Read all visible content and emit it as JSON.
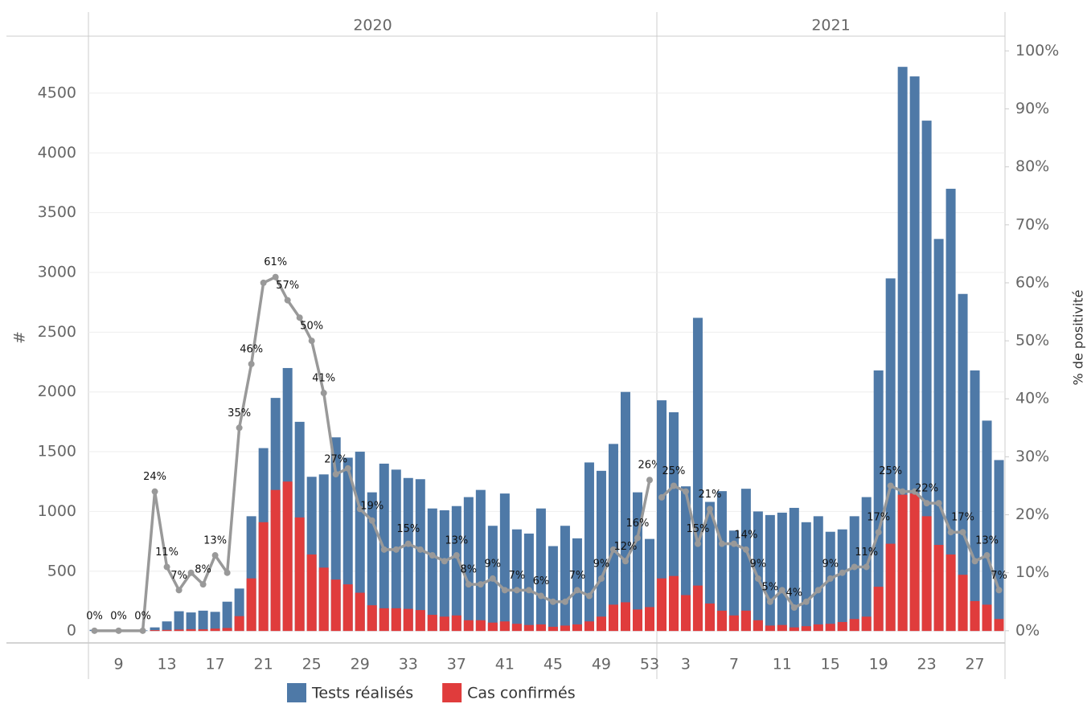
{
  "chart_data": {
    "type": "bar",
    "ylabel": "#",
    "y2label": "% de positivité",
    "ylim": [
      -100,
      4970
    ],
    "yticks": [
      0,
      500,
      1000,
      1500,
      2000,
      2500,
      3000,
      3500,
      4000,
      4500
    ],
    "y2lim": [
      -2.1,
      102.4
    ],
    "y2ticks": [
      {
        "value": 0,
        "label": "0%"
      },
      {
        "value": 10,
        "label": "10%"
      },
      {
        "value": 20,
        "label": "20%"
      },
      {
        "value": 30,
        "label": "30%"
      },
      {
        "value": 40,
        "label": "40%"
      },
      {
        "value": 50,
        "label": "50%"
      },
      {
        "value": 60,
        "label": "60%"
      },
      {
        "value": 70,
        "label": "70%"
      },
      {
        "value": 80,
        "label": "80%"
      },
      {
        "value": 90,
        "label": "90%"
      },
      {
        "value": 100,
        "label": "100%"
      }
    ],
    "grid": true,
    "panels": [
      {
        "title": "2020",
        "xlim": [
          6.5,
          53.6
        ],
        "xticks": [
          9,
          13,
          17,
          21,
          25,
          29,
          33,
          37,
          41,
          45,
          49,
          53
        ],
        "x": [
          7,
          9,
          11,
          12,
          13,
          14,
          15,
          16,
          17,
          18,
          19,
          20,
          21,
          22,
          23,
          24,
          25,
          26,
          27,
          28,
          29,
          30,
          31,
          32,
          33,
          34,
          35,
          36,
          37,
          38,
          39,
          40,
          41,
          42,
          43,
          44,
          45,
          46,
          47,
          48,
          49,
          50,
          51,
          52,
          53
        ]
      },
      {
        "title": "2021",
        "xlim": [
          0.6,
          29.5
        ],
        "xticks": [
          3,
          7,
          11,
          15,
          19,
          23,
          27
        ],
        "x": [
          1,
          2,
          3,
          4,
          5,
          6,
          7,
          8,
          9,
          10,
          11,
          12,
          13,
          14,
          15,
          16,
          17,
          18,
          19,
          20,
          21,
          22,
          23,
          24,
          25,
          26,
          27,
          28,
          29
        ]
      }
    ],
    "series": [
      {
        "name": "Tests réalisés",
        "color": "#4e79a7",
        "type": "bar",
        "values": [
          10,
          5,
          5,
          30,
          80,
          165,
          155,
          170,
          160,
          245,
          355,
          960,
          1530,
          1950,
          2200,
          1750,
          1290,
          1310,
          1620,
          1450,
          1500,
          1160,
          1400,
          1350,
          1280,
          1270,
          1025,
          1010,
          1045,
          1120,
          1180,
          880,
          1150,
          850,
          815,
          1025,
          710,
          880,
          775,
          1410,
          1340,
          1565,
          2000,
          1160,
          770,
          1930,
          1830,
          1210,
          2620,
          1080,
          1170,
          840,
          1190,
          1000,
          970,
          990,
          1030,
          910,
          960,
          830,
          850,
          960,
          1120,
          2180,
          2950,
          4720,
          4640,
          4270,
          3280,
          3700,
          2820,
          2180,
          1760,
          1430
        ]
      },
      {
        "name": "Cas confirmés",
        "color": "#e03c3c",
        "type": "bar",
        "values": [
          0,
          0,
          0,
          7,
          9,
          12,
          15,
          14,
          20,
          25,
          124,
          440,
          910,
          1180,
          1250,
          950,
          640,
          530,
          430,
          390,
          320,
          215,
          190,
          190,
          185,
          175,
          135,
          120,
          130,
          90,
          90,
          70,
          80,
          60,
          50,
          55,
          35,
          45,
          55,
          80,
          120,
          220,
          240,
          180,
          200,
          440,
          460,
          300,
          380,
          230,
          170,
          130,
          170,
          90,
          45,
          50,
          30,
          40,
          55,
          60,
          75,
          100,
          120,
          370,
          730,
          1140,
          1150,
          960,
          720,
          640,
          470,
          250,
          220,
          100
        ]
      },
      {
        "color": "#999999",
        "type": "line",
        "axis": "y2",
        "values": [
          0,
          0,
          0,
          24,
          11,
          7,
          10,
          8,
          13,
          10,
          35,
          46,
          60,
          61,
          57,
          54,
          50,
          41,
          27,
          28,
          21,
          19,
          14,
          14,
          15,
          14,
          13,
          12,
          13,
          8,
          8,
          9,
          7,
          7,
          7,
          6,
          5,
          5,
          7,
          6,
          9,
          14,
          12,
          16,
          26,
          23,
          25,
          24,
          15,
          21,
          15,
          15,
          14,
          9,
          5,
          7,
          4,
          5,
          7,
          9,
          10,
          11,
          11,
          17,
          25,
          24,
          24,
          22,
          22,
          17,
          17,
          12,
          13,
          7
        ],
        "value_labels": [
          "0%",
          "0%",
          "0%",
          "24%",
          "11%",
          "7%",
          null,
          "8%",
          "13%",
          null,
          "35%",
          "46%",
          null,
          "61%",
          "57%",
          null,
          "50%",
          "41%",
          "27%",
          null,
          null,
          "19%",
          null,
          null,
          "15%",
          null,
          null,
          null,
          "13%",
          "8%",
          null,
          "9%",
          null,
          "7%",
          null,
          "6%",
          null,
          null,
          "7%",
          null,
          "9%",
          null,
          "12%",
          "16%",
          "26%",
          null,
          "25%",
          null,
          "15%",
          "21%",
          null,
          null,
          "14%",
          "9%",
          "5%",
          null,
          "4%",
          null,
          null,
          "9%",
          null,
          null,
          "11%",
          "17%",
          "25%",
          null,
          null,
          "22%",
          null,
          null,
          "17%",
          null,
          "13%",
          "7%"
        ]
      }
    ]
  }
}
